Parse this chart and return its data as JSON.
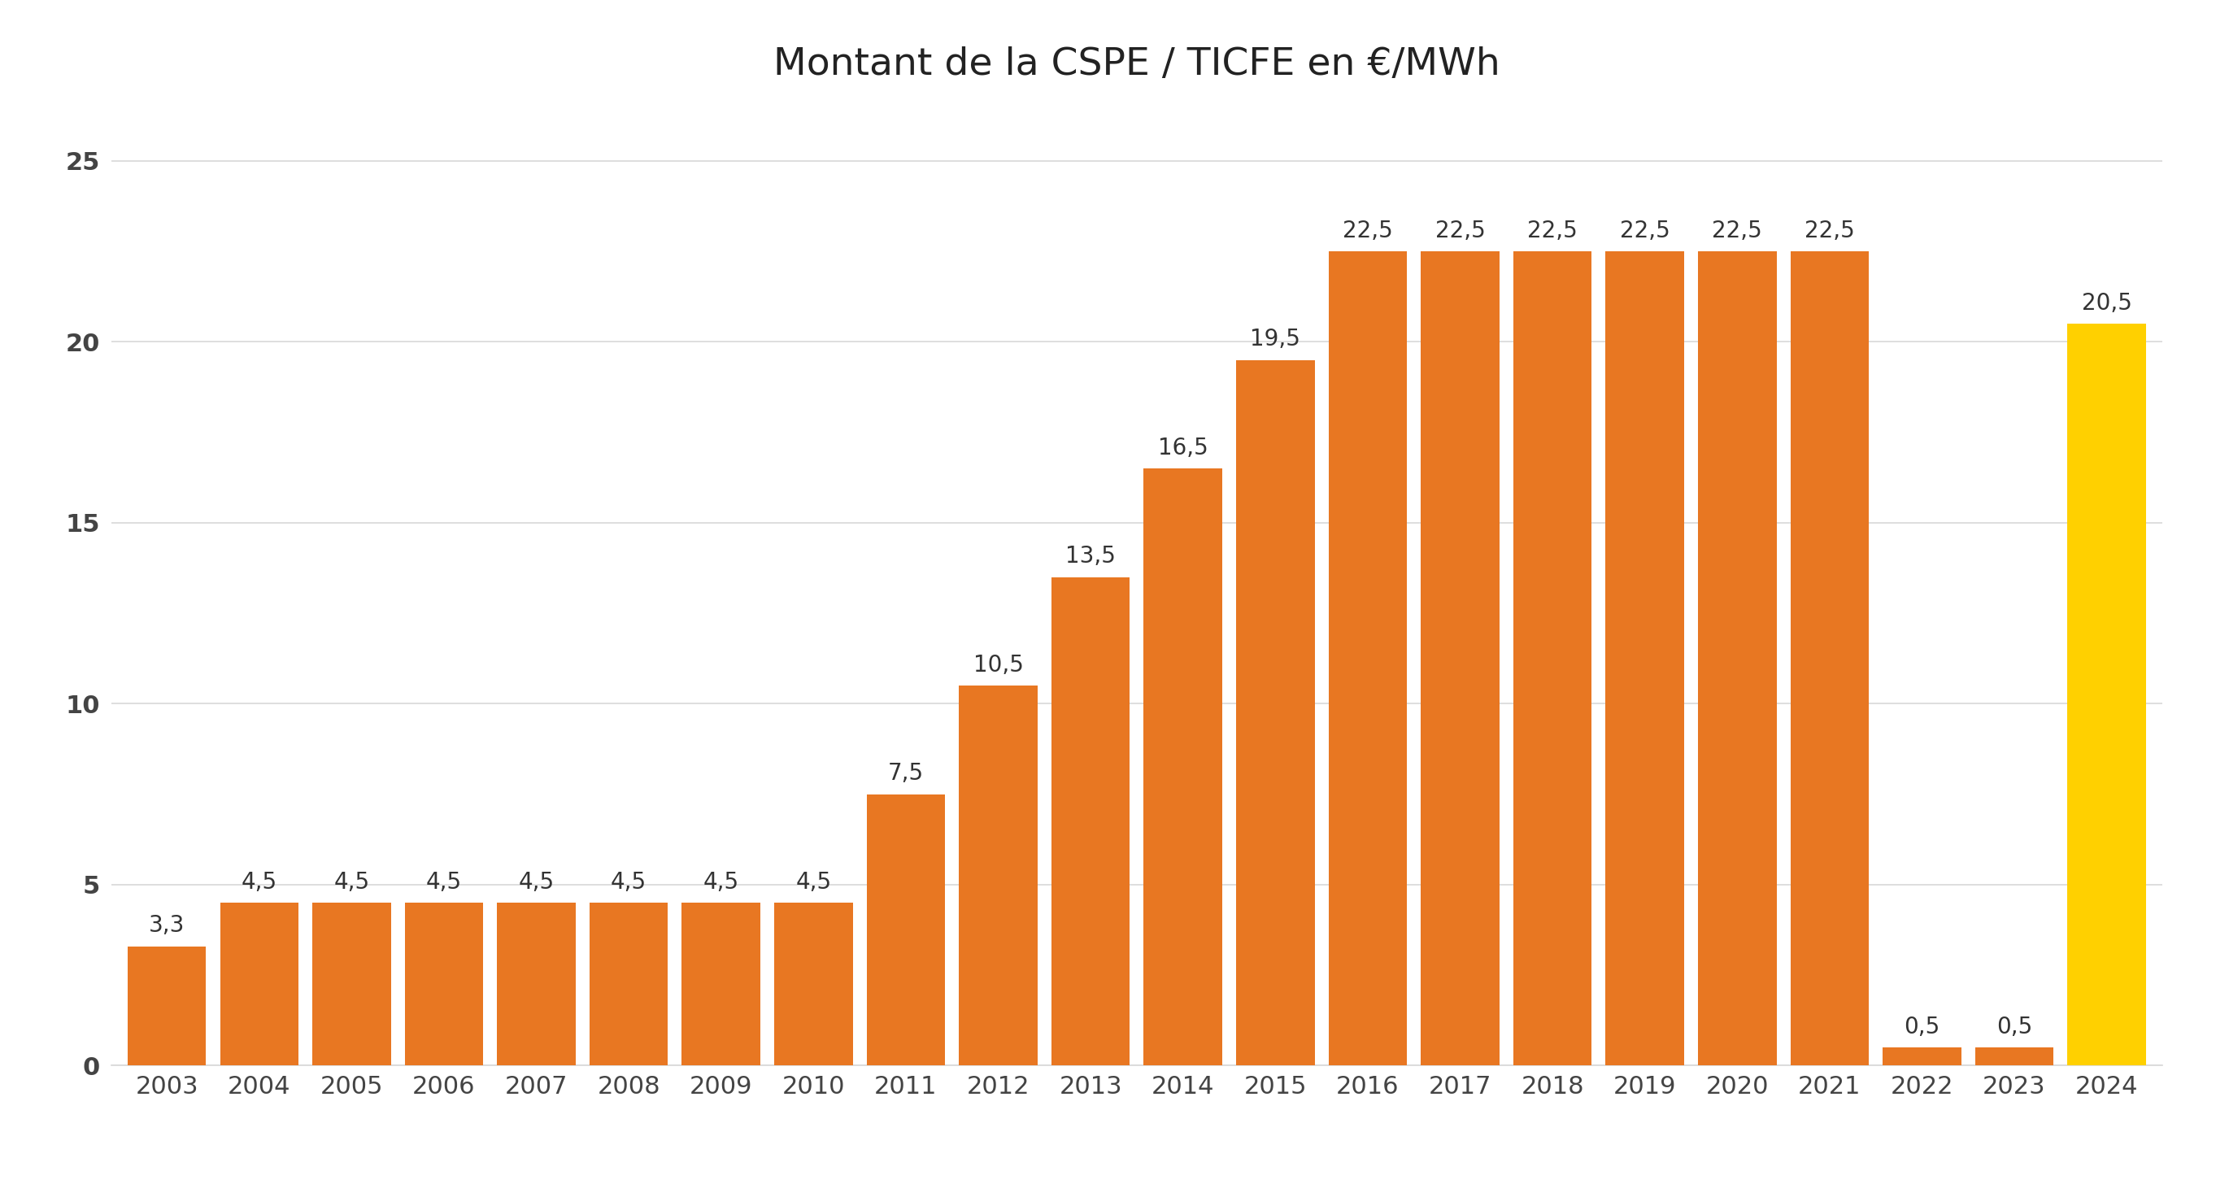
{
  "title": "Montant de la CSPE / TICFE en €/MWh",
  "categories": [
    "2003",
    "2004",
    "2005",
    "2006",
    "2007",
    "2008",
    "2009",
    "2010",
    "2011",
    "2012",
    "2013",
    "2014",
    "2015",
    "2016",
    "2017",
    "2018",
    "2019",
    "2020",
    "2021",
    "2022",
    "2023",
    "2024"
  ],
  "values": [
    3.3,
    4.5,
    4.5,
    4.5,
    4.5,
    4.5,
    4.5,
    4.5,
    7.5,
    10.5,
    13.5,
    16.5,
    19.5,
    22.5,
    22.5,
    22.5,
    22.5,
    22.5,
    22.5,
    0.5,
    0.5,
    20.5
  ],
  "bar_colors": [
    "#E87722",
    "#E87722",
    "#E87722",
    "#E87722",
    "#E87722",
    "#E87722",
    "#E87722",
    "#E87722",
    "#E87722",
    "#E87722",
    "#E87722",
    "#E87722",
    "#E87722",
    "#E87722",
    "#E87722",
    "#E87722",
    "#E87722",
    "#E87722",
    "#E87722",
    "#E87722",
    "#E87722",
    "#FFD000"
  ],
  "label_values": [
    "3,3",
    "4,5",
    "4,5",
    "4,5",
    "4,5",
    "4,5",
    "4,5",
    "4,5",
    "7,5",
    "10,5",
    "13,5",
    "16,5",
    "19,5",
    "22,5",
    "22,5",
    "22,5",
    "22,5",
    "22,5",
    "22,5",
    "0,5",
    "0,5",
    "20,5"
  ],
  "ylim": [
    0,
    26.5
  ],
  "yticks": [
    0,
    5,
    10,
    15,
    20,
    25
  ],
  "title_fontsize": 34,
  "label_fontsize": 20,
  "tick_fontsize": 22,
  "background_color": "#FFFFFF",
  "grid_color": "#D8D8D8",
  "bar_width": 0.85
}
